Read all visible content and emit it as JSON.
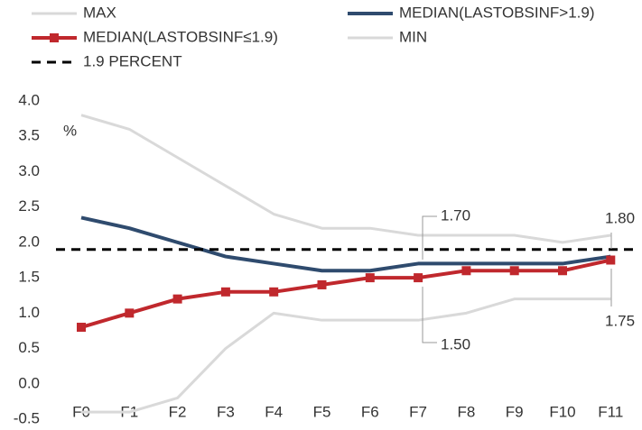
{
  "chart_data": {
    "type": "line",
    "y_unit_label": "%",
    "categories": [
      "F0",
      "F1",
      "F2",
      "F3",
      "F4",
      "F5",
      "F6",
      "F7",
      "F8",
      "F9",
      "F10",
      "F11"
    ],
    "series": [
      {
        "name": "MAX",
        "color": "#d9d9d9",
        "width": 3,
        "values": [
          3.8,
          3.6,
          3.2,
          2.8,
          2.4,
          2.2,
          2.2,
          2.1,
          2.1,
          2.1,
          2.0,
          2.1
        ]
      },
      {
        "name": "MEDIAN(LASTOBSINF>1.9)",
        "color": "#2f4b6e",
        "width": 4,
        "values": [
          2.35,
          2.2,
          2.0,
          1.8,
          1.7,
          1.6,
          1.6,
          1.7,
          1.7,
          1.7,
          1.7,
          1.8
        ]
      },
      {
        "name": "MEDIAN(LASTOBSINF≤1.9)",
        "color": "#c0282d",
        "width": 4,
        "marker": "square",
        "values": [
          0.8,
          1.0,
          1.2,
          1.3,
          1.3,
          1.4,
          1.5,
          1.5,
          1.6,
          1.6,
          1.6,
          1.75
        ]
      },
      {
        "name": "MIN",
        "color": "#d9d9d9",
        "width": 3,
        "values": [
          -0.4,
          -0.4,
          -0.2,
          0.5,
          1.0,
          0.9,
          0.9,
          0.9,
          1.0,
          1.2,
          1.2,
          1.2
        ]
      },
      {
        "name": "1.9 PERCENT",
        "color": "#000000",
        "width": 3,
        "dashed": true,
        "values": [
          1.9,
          1.9,
          1.9,
          1.9,
          1.9,
          1.9,
          1.9,
          1.9,
          1.9,
          1.9,
          1.9,
          1.9
        ]
      }
    ],
    "annotations": [
      "1.70",
      "1.50",
      "1.80",
      "1.75"
    ],
    "ylim": [
      -0.5,
      4.0
    ],
    "yticks": [
      -0.5,
      {
        "value": 0,
        "label": "0.0"
      },
      0.5,
      {
        "value": 1,
        "label": "1.0"
      },
      1.5,
      {
        "value": 2,
        "label": "2.0"
      },
      2.5,
      {
        "value": 3,
        "label": "3.0"
      },
      3.5,
      {
        "value": 4,
        "label": "4.0"
      }
    ],
    "grid": false
  }
}
